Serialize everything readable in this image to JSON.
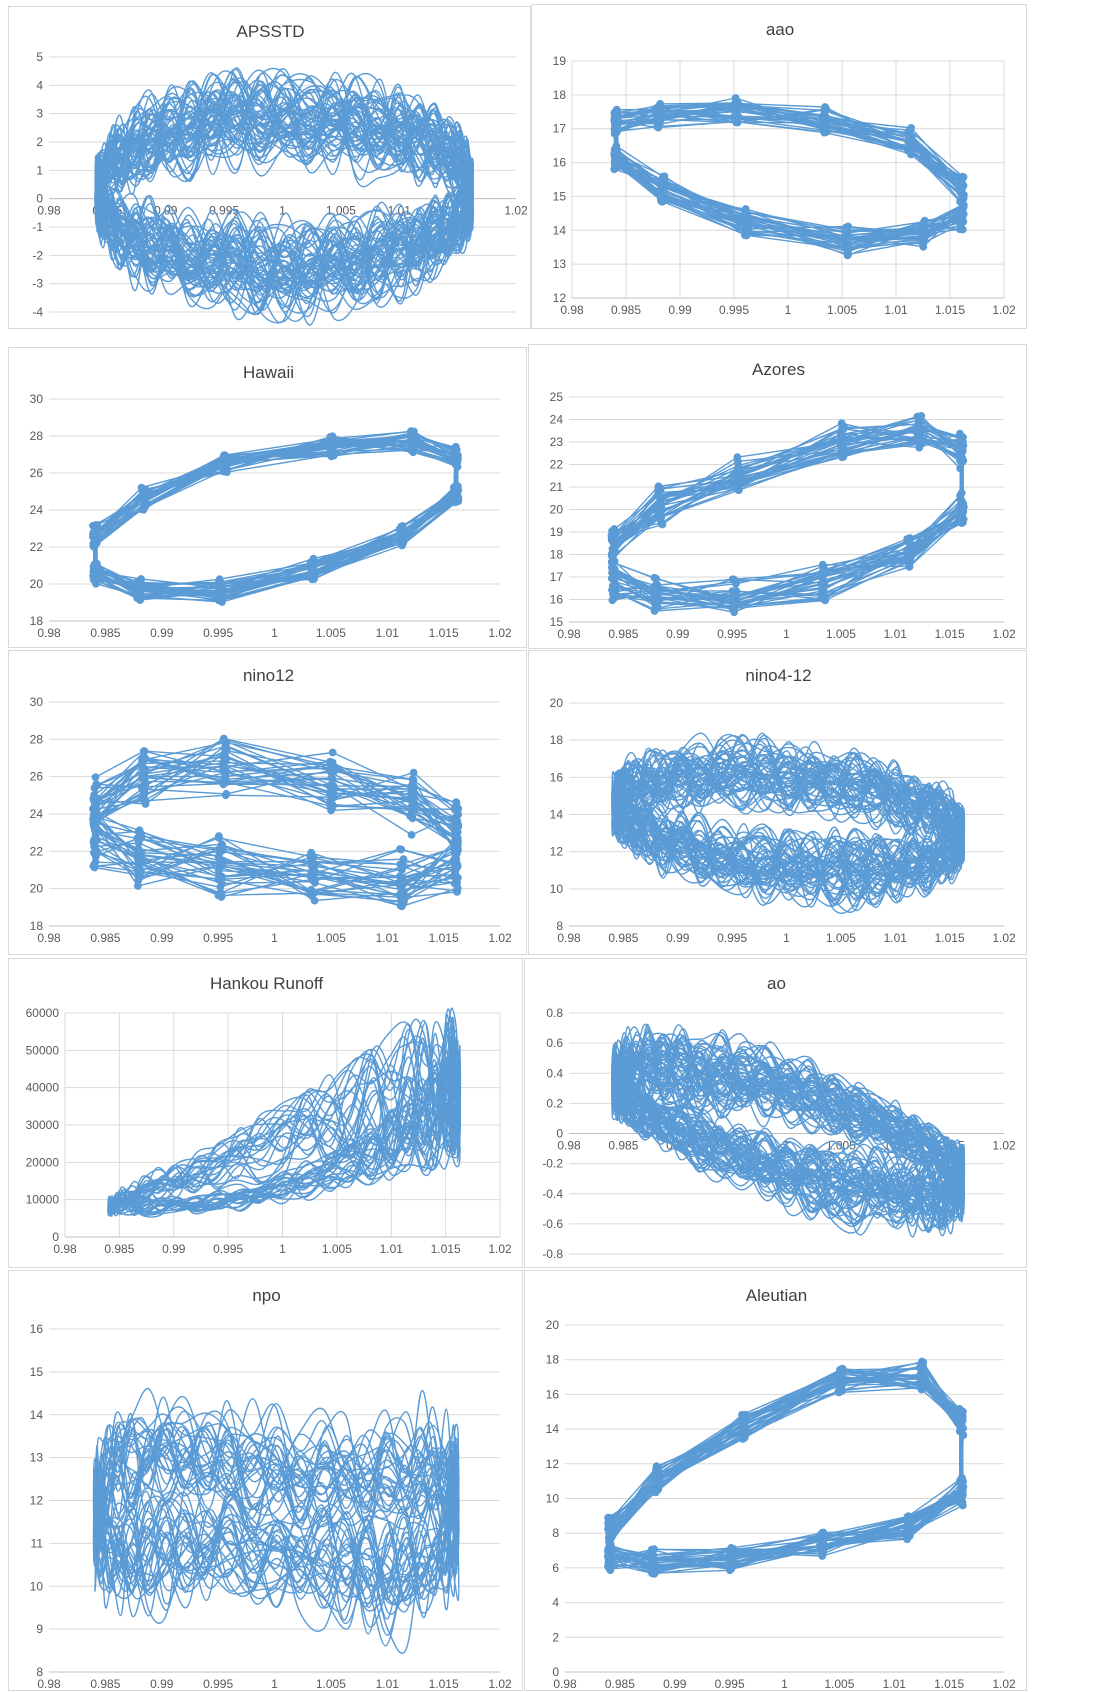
{
  "colors": {
    "series": "#5b9bd5",
    "grid": "#d9d9d9",
    "text": "#595959",
    "title": "#404040"
  },
  "chart_data": [
    {
      "id": "apsstd",
      "type": "line",
      "title": "APSSTD",
      "xlabel": "",
      "ylabel": "",
      "xlim": [
        0.98,
        1.02
      ],
      "ylim": [
        -4,
        5
      ],
      "x_ticks": [
        "0.98",
        "0.985",
        "0.99",
        "0.995",
        "1",
        "1.005",
        "1.01",
        "1.015",
        "1.02"
      ],
      "y_ticks": [
        "-4",
        "-3",
        "-2",
        "-1",
        "0",
        "1",
        "2",
        "3",
        "4",
        "5"
      ],
      "x_axis_at": 0,
      "grid": "horizontal",
      "markers": false,
      "orbits": {
        "count": 60,
        "xmin": 0.984,
        "xmax": 1.0163,
        "ymin": -3.9,
        "ymax": 4.3,
        "shape": "ellipse"
      }
    },
    {
      "id": "aao",
      "type": "line",
      "title": "aao",
      "xlabel": "",
      "ylabel": "",
      "xlim": [
        0.98,
        1.02
      ],
      "ylim": [
        12,
        19
      ],
      "x_ticks": [
        "0.98",
        "0.985",
        "0.99",
        "0.995",
        "1",
        "1.005",
        "1.01",
        "1.015",
        "1.02"
      ],
      "y_ticks": [
        "12",
        "13",
        "14",
        "15",
        "16",
        "17",
        "18",
        "19"
      ],
      "x_axis_at": 12,
      "grid": "both",
      "markers": true,
      "cycle": {
        "x": [
          0.9841,
          0.988,
          0.9952,
          1.0034,
          1.0113,
          1.0161,
          1.0161,
          1.0125,
          1.0054,
          0.9962,
          0.9884,
          0.9841
        ],
        "y": [
          17.2,
          17.4,
          17.5,
          17.3,
          16.6,
          15.2,
          14.4,
          13.9,
          13.7,
          14.2,
          15.2,
          16.2
        ]
      },
      "spread": 0.35
    },
    {
      "id": "hawaii",
      "type": "line",
      "title": "Hawaii",
      "xlabel": "",
      "ylabel": "",
      "xlim": [
        0.98,
        1.02
      ],
      "ylim": [
        18,
        30
      ],
      "x_ticks": [
        "0.98",
        "0.985",
        "0.99",
        "0.995",
        "1",
        "1.005",
        "1.01",
        "1.015",
        "1.02"
      ],
      "y_ticks": [
        "18",
        "20",
        "22",
        "24",
        "26",
        "28",
        "30"
      ],
      "x_axis_at": 18,
      "grid": "horizontal",
      "markers": true,
      "cycle": {
        "x": [
          0.9841,
          0.9884,
          0.9956,
          1.0051,
          1.0122,
          1.0161,
          1.0161,
          1.0113,
          1.0034,
          0.9952,
          0.988,
          0.9841
        ],
        "y": [
          22.6,
          24.6,
          26.4,
          27.5,
          27.8,
          26.9,
          24.8,
          22.6,
          20.7,
          19.6,
          19.6,
          20.6
        ]
      },
      "spread": 0.55
    },
    {
      "id": "azores",
      "type": "line",
      "title": "Azores",
      "xlabel": "",
      "ylabel": "",
      "xlim": [
        0.98,
        1.02
      ],
      "ylim": [
        15,
        25
      ],
      "x_ticks": [
        "0.98",
        "0.985",
        "0.99",
        "0.995",
        "1",
        "1.005",
        "1.01",
        "1.015",
        "1.02"
      ],
      "y_ticks": [
        "15",
        "16",
        "17",
        "18",
        "19",
        "20",
        "21",
        "22",
        "23",
        "24",
        "25"
      ],
      "x_axis_at": 15,
      "grid": "horizontal",
      "markers": true,
      "cycle": {
        "x": [
          0.9841,
          0.9884,
          0.9956,
          1.0051,
          1.0122,
          1.0161,
          1.0161,
          1.0113,
          1.0034,
          0.9952,
          0.988,
          0.9841
        ],
        "y": [
          18.4,
          20.2,
          21.6,
          23.0,
          23.6,
          22.6,
          20.0,
          18.0,
          16.8,
          16.2,
          16.3,
          16.8
        ]
      },
      "spread": 0.75
    },
    {
      "id": "nino12",
      "type": "line",
      "title": "nino12",
      "xlabel": "",
      "ylabel": "",
      "xlim": [
        0.98,
        1.02
      ],
      "ylim": [
        18,
        30
      ],
      "x_ticks": [
        "0.98",
        "0.985",
        "0.99",
        "0.995",
        "1",
        "1.005",
        "1.01",
        "1.015",
        "1.02"
      ],
      "y_ticks": [
        "18",
        "20",
        "22",
        "24",
        "26",
        "28",
        "30"
      ],
      "x_axis_at": 18,
      "grid": "horizontal",
      "markers": true,
      "cycle": {
        "x": [
          0.9841,
          0.9884,
          0.9956,
          1.0051,
          1.0122,
          1.0161,
          1.0161,
          1.0113,
          1.0034,
          0.9952,
          0.988,
          0.9841
        ],
        "y": [
          24.6,
          26.0,
          26.6,
          25.8,
          24.6,
          23.2,
          21.4,
          20.6,
          20.6,
          21.2,
          21.8,
          22.8
        ]
      },
      "spread": 1.4
    },
    {
      "id": "nino4-12",
      "type": "line",
      "title": "nino4-12",
      "xlabel": "",
      "ylabel": "",
      "xlim": [
        0.98,
        1.02
      ],
      "ylim": [
        8,
        20
      ],
      "x_ticks": [
        "0.98",
        "0.985",
        "0.99",
        "0.995",
        "1",
        "1.005",
        "1.01",
        "1.015",
        "1.02"
      ],
      "y_ticks": [
        "8",
        "10",
        "12",
        "14",
        "16",
        "18",
        "20"
      ],
      "x_axis_at": 8,
      "grid": "horizontal",
      "markers": false,
      "orbits": {
        "count": 55,
        "xmin": 0.984,
        "xmax": 1.0163,
        "ymin": 8.6,
        "ymax": 18.7,
        "shape": "tilted"
      }
    },
    {
      "id": "hankou-runoff",
      "type": "line",
      "title": "Hankou Runoff",
      "xlabel": "",
      "ylabel": "",
      "xlim": [
        0.98,
        1.02
      ],
      "ylim": [
        0,
        60000
      ],
      "x_ticks": [
        "0.98",
        "0.985",
        "0.99",
        "0.995",
        "1",
        "1.005",
        "1.01",
        "1.015",
        "1.02"
      ],
      "y_ticks": [
        "0",
        "10000",
        "20000",
        "30000",
        "40000",
        "50000",
        "60000"
      ],
      "x_axis_at": 0,
      "grid": "both",
      "markers": false,
      "orbits": {
        "count": 24,
        "xmin": 0.984,
        "xmax": 1.0163,
        "ymin": 5500,
        "ymax": 58000,
        "shape": "runoff"
      }
    },
    {
      "id": "ao",
      "type": "line",
      "title": "ao",
      "xlabel": "",
      "ylabel": "",
      "xlim": [
        0.98,
        1.02
      ],
      "ylim": [
        -0.8,
        0.8
      ],
      "x_ticks": [
        "0.98",
        "0.985",
        "0.99",
        "0.995",
        "1",
        "1.005",
        "1.01",
        "1.015",
        "1.02"
      ],
      "y_ticks": [
        "-0.8",
        "-0.6",
        "-0.4",
        "-0.2",
        "0",
        "0.2",
        "0.4",
        "0.6",
        "0.8"
      ],
      "x_axis_at": 0,
      "grid": "horizontal",
      "markers": false,
      "orbits": {
        "count": 60,
        "xmin": 0.984,
        "xmax": 1.0163,
        "ymin": -0.74,
        "ymax": 0.77,
        "shape": "ao"
      }
    },
    {
      "id": "npo",
      "type": "line",
      "title": "npo",
      "xlabel": "",
      "ylabel": "",
      "xlim": [
        0.98,
        1.02
      ],
      "ylim": [
        8,
        16
      ],
      "x_ticks": [
        "0.98",
        "0.985",
        "0.99",
        "0.995",
        "1",
        "1.005",
        "1.01",
        "1.015",
        "1.02"
      ],
      "y_ticks": [
        "8",
        "9",
        "10",
        "11",
        "12",
        "13",
        "14",
        "15",
        "16"
      ],
      "x_axis_at": 8,
      "grid": "horizontal",
      "markers": false,
      "orbits": {
        "count": 30,
        "xmin": 0.984,
        "xmax": 1.0163,
        "ymin": 8.3,
        "ymax": 15.1,
        "shape": "npo"
      }
    },
    {
      "id": "aleutian",
      "type": "line",
      "title": "Aleutian",
      "xlabel": "",
      "ylabel": "",
      "xlim": [
        0.98,
        1.02
      ],
      "ylim": [
        0,
        20
      ],
      "x_ticks": [
        "0.98",
        "0.985",
        "0.99",
        "0.995",
        "1",
        "1.005",
        "1.01",
        "1.015",
        "1.02"
      ],
      "y_ticks": [
        "0",
        "2",
        "4",
        "6",
        "8",
        "10",
        "12",
        "14",
        "16",
        "18",
        "20"
      ],
      "x_axis_at": 0,
      "grid": "horizontal",
      "markers": true,
      "cycle": {
        "x": [
          0.9841,
          0.9884,
          0.9963,
          1.0051,
          1.0125,
          1.0161,
          1.0161,
          1.0113,
          1.0034,
          0.9952,
          0.988,
          0.9841
        ],
        "y": [
          8.2,
          11.0,
          14.2,
          16.8,
          17.1,
          14.4,
          10.4,
          8.4,
          7.3,
          6.5,
          6.3,
          6.6
        ]
      },
      "spread": 0.7
    }
  ]
}
